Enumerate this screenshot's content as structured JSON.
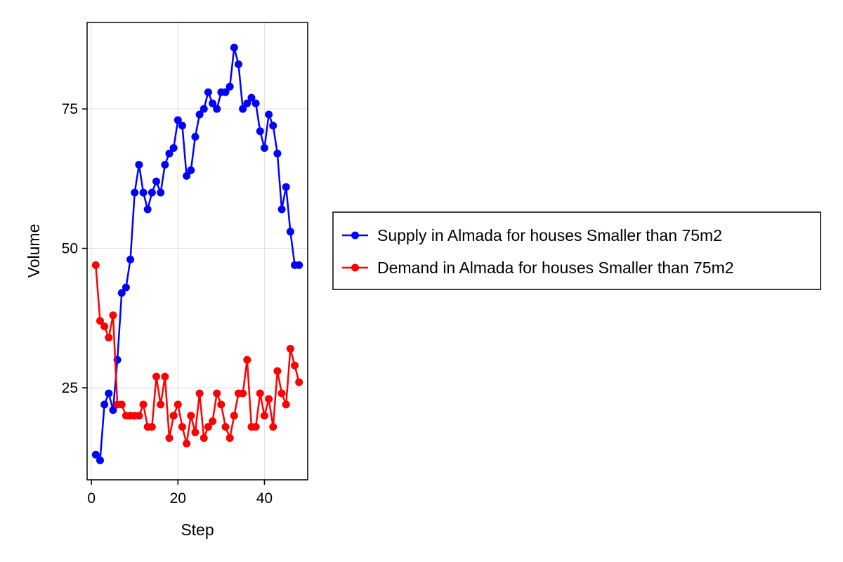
{
  "chart_data": {
    "type": "line",
    "title": "",
    "xlabel": "Step",
    "ylabel": "Volume",
    "xlim": [
      -1,
      50
    ],
    "ylim": [
      8.5,
      90.5
    ],
    "xticks": [
      0,
      20,
      40
    ],
    "yticks": [
      25,
      50,
      75
    ],
    "grid": true,
    "legend_position": "right",
    "x": [
      1,
      2,
      3,
      4,
      5,
      6,
      7,
      8,
      9,
      10,
      11,
      12,
      13,
      14,
      15,
      16,
      17,
      18,
      19,
      20,
      21,
      22,
      23,
      24,
      25,
      26,
      27,
      28,
      29,
      30,
      31,
      32,
      33,
      34,
      35,
      36,
      37,
      38,
      39,
      40,
      41,
      42,
      43,
      44,
      45,
      46,
      47,
      48
    ],
    "series": [
      {
        "name": "Supply in Almada for houses Smaller than 75m2",
        "color": "#0000ff",
        "values": [
          13,
          12,
          22,
          24,
          21,
          30,
          42,
          43,
          48,
          60,
          65,
          60,
          57,
          60,
          62,
          60,
          65,
          67,
          68,
          73,
          72,
          63,
          64,
          70,
          74,
          75,
          78,
          76,
          75,
          78,
          78,
          79,
          86,
          83,
          75,
          76,
          77,
          76,
          71,
          68,
          74,
          72,
          67,
          57,
          61,
          53,
          47,
          47
        ]
      },
      {
        "name": "Demand in Almada for houses Smaller than 75m2",
        "color": "#ff0000",
        "values": [
          47,
          37,
          36,
          34,
          38,
          22,
          22,
          20,
          20,
          20,
          20,
          22,
          18,
          18,
          27,
          22,
          27,
          16,
          20,
          22,
          18,
          15,
          20,
          17,
          24,
          16,
          18,
          19,
          24,
          22,
          18,
          16,
          20,
          24,
          24,
          30,
          18,
          18,
          24,
          20,
          23,
          18,
          28,
          24,
          22,
          32,
          29,
          26
        ]
      }
    ]
  }
}
